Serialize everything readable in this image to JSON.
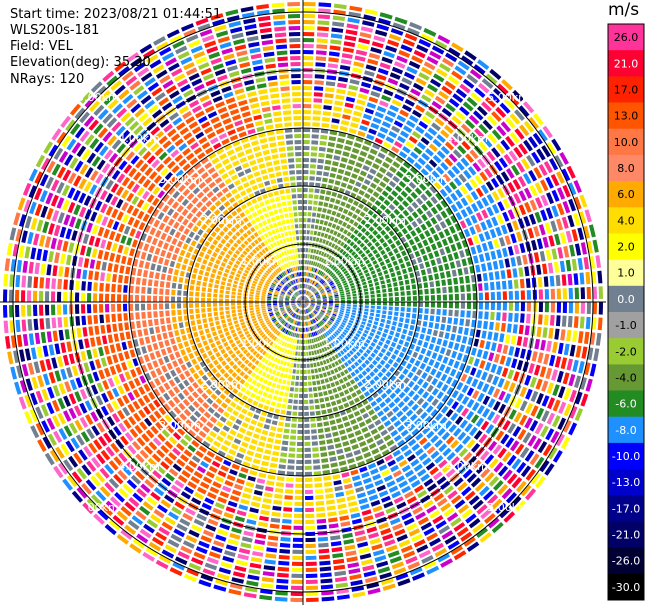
{
  "header": {
    "start_time": "Start time: 2023/08/21 01:44:51",
    "instrument": "WLS200s-181",
    "field": "Field: VEL",
    "elevation": "Elevation(deg): 35.30",
    "nrays": "NRays: 120"
  },
  "colorbar": {
    "unit": "m/s",
    "labels": [
      "26.0",
      "21.0",
      "17.0",
      "13.0",
      "10.0",
      "8.0",
      "6.0",
      "4.0",
      "2.0",
      "1.0",
      "0.0",
      "-1.0",
      "-2.0",
      "-4.0",
      "-6.0",
      "-8.0",
      "-10.0",
      "-13.0",
      "-17.0",
      "-21.0",
      "-26.0",
      "-30.0"
    ],
    "colors": [
      "#ff3399",
      "#ff0033",
      "#ff2200",
      "#ff5500",
      "#ff7744",
      "#ff8866",
      "#ffaa00",
      "#ffdd00",
      "#ffff00",
      "#ffff99",
      "#708090",
      "#a0a0a0",
      "#99cc33",
      "#669933",
      "#228b22",
      "#1e90ff",
      "#0000ff",
      "#0000cc",
      "#00008b",
      "#000066",
      "#000033",
      "#000000"
    ]
  },
  "chart_data": {
    "type": "heatmap",
    "projection": "polar PPI",
    "field": "VEL",
    "units": "m/s",
    "nrays": 120,
    "range_rings_km": [
      1.0,
      2.0,
      3.0,
      4.0,
      5.0
    ],
    "ring_labels": [
      "1.00km",
      "2.00km",
      "3.00km",
      "4.00km",
      "5.00km"
    ],
    "color_scale": [
      -30,
      26
    ]
  }
}
